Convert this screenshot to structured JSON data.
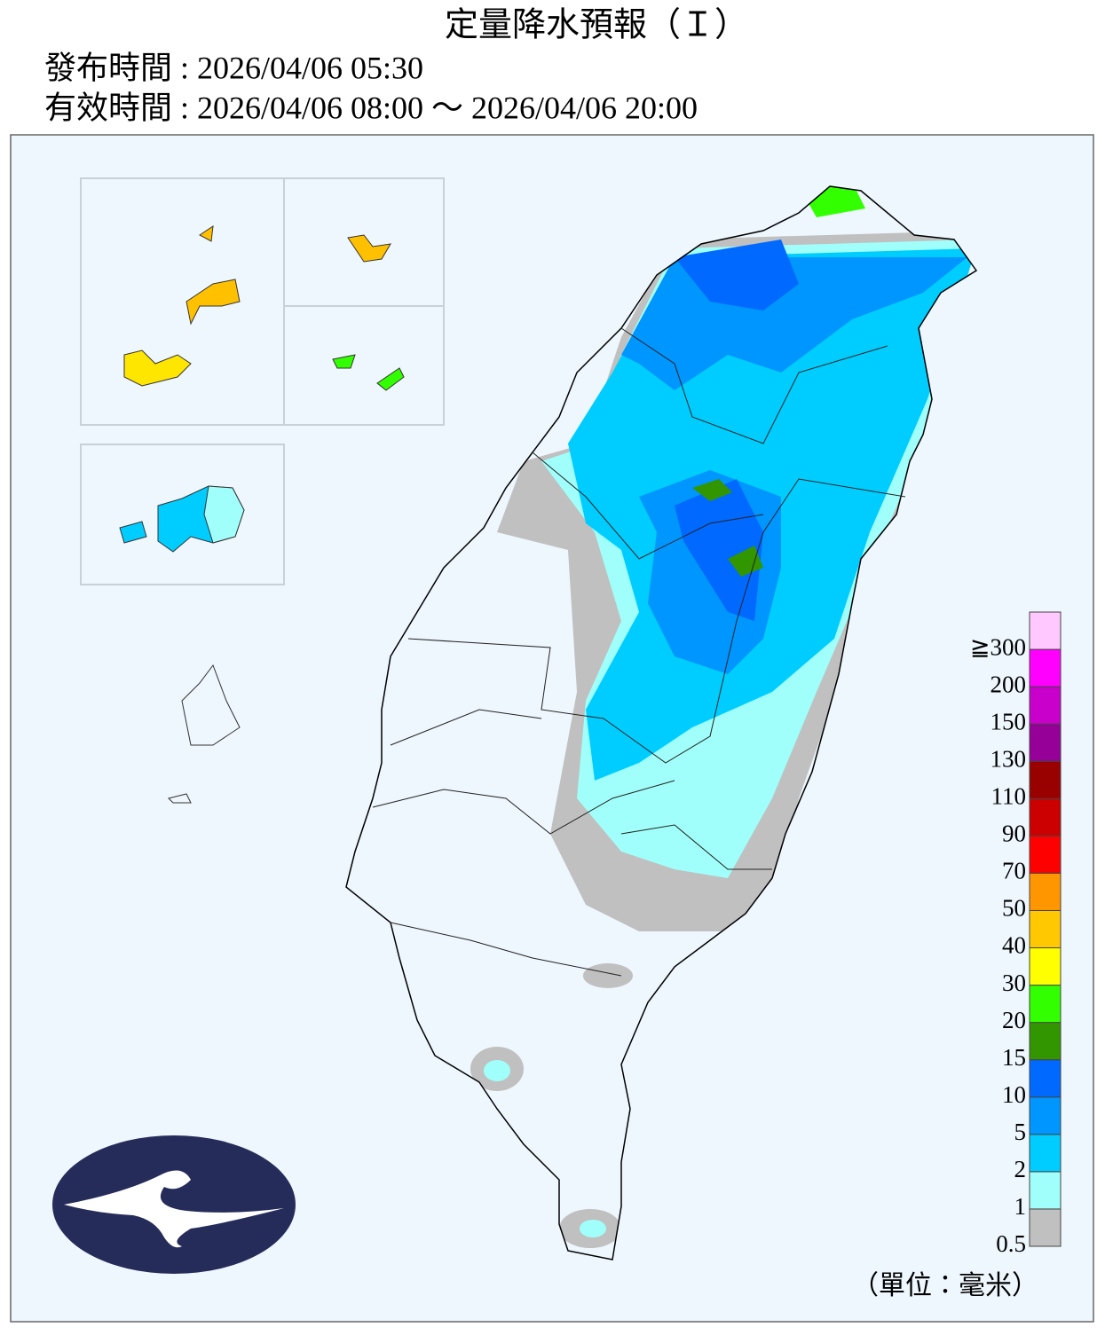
{
  "header": {
    "title": "定量降水預報（Ｉ）",
    "issued": "發布時間 : 2026/04/06 05:30",
    "valid": "有效時間 : 2026/04/06 08:00 ～ 2026/04/06 20:00"
  },
  "legend": {
    "colors": [
      "#c0c0c0",
      "#a0fffa",
      "#00cdff",
      "#0096ff",
      "#0069ff",
      "#329600",
      "#32ff00",
      "#ffff00",
      "#ffc800",
      "#ff9600",
      "#ff0000",
      "#cc0000",
      "#990000",
      "#960099",
      "#c900cc",
      "#ff00ff",
      "#ffc8ff"
    ],
    "labels": [
      "0.5",
      "1",
      "2",
      "5",
      "10",
      "15",
      "20",
      "30",
      "40",
      "50",
      "70",
      "90",
      "110",
      "130",
      "150",
      "200",
      "≧300"
    ],
    "unit": "（單位：毫米）"
  }
}
